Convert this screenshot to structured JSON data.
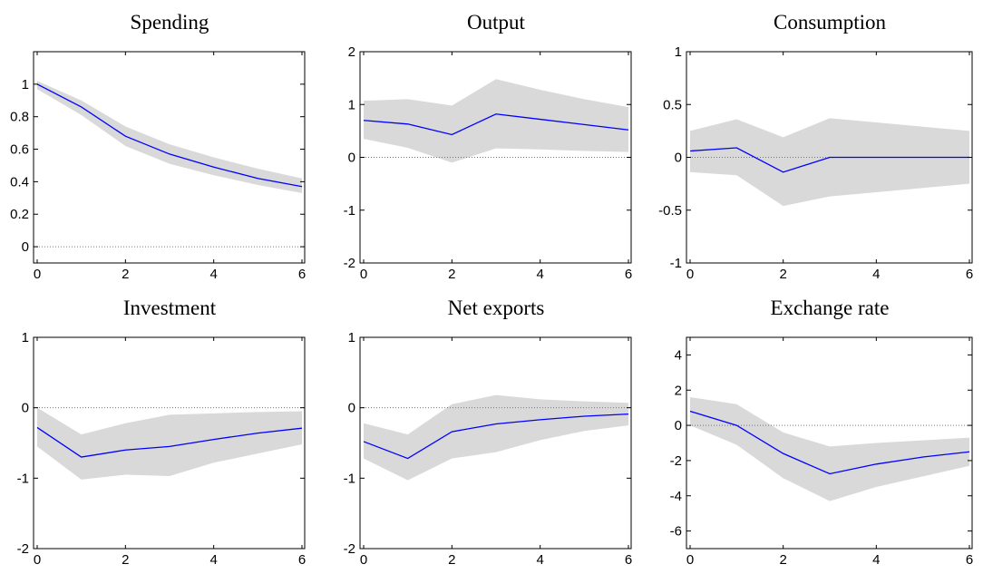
{
  "chart_data": [
    {
      "type": "line",
      "title": "Spending",
      "x": [
        0,
        1,
        2,
        3,
        4,
        5,
        6
      ],
      "xlim": [
        0,
        6
      ],
      "xticks": [
        0,
        2,
        4,
        6
      ],
      "ylim": [
        -0.1,
        1.2
      ],
      "yticks": [
        0,
        0.2,
        0.4,
        0.6,
        0.8,
        1
      ],
      "hline": 0,
      "band": {
        "color": "#d9d9d9",
        "upper": [
          1.02,
          0.9,
          0.74,
          0.63,
          0.55,
          0.48,
          0.42
        ],
        "lower": [
          0.97,
          0.81,
          0.62,
          0.51,
          0.44,
          0.38,
          0.33
        ]
      },
      "series": [
        {
          "color": "#0000ff",
          "values": [
            1,
            0.86,
            0.68,
            0.57,
            0.49,
            0.42,
            0.37
          ]
        }
      ]
    },
    {
      "type": "line",
      "title": "Output",
      "x": [
        0,
        1,
        2,
        3,
        4,
        5,
        6
      ],
      "xlim": [
        0,
        6
      ],
      "xticks": [
        0,
        2,
        4,
        6
      ],
      "ylim": [
        -2,
        2
      ],
      "yticks": [
        -2,
        -1,
        0,
        1,
        2
      ],
      "hline": 0,
      "band": {
        "color": "#d9d9d9",
        "upper": [
          1.07,
          1.1,
          0.98,
          1.48,
          1.28,
          1.1,
          0.95
        ],
        "lower": [
          0.35,
          0.18,
          -0.1,
          0.17,
          0.15,
          0.12,
          0.1
        ]
      },
      "series": [
        {
          "color": "#0000ff",
          "values": [
            0.7,
            0.63,
            0.43,
            0.82,
            0.72,
            0.62,
            0.52
          ]
        }
      ]
    },
    {
      "type": "line",
      "title": "Consumption",
      "x": [
        0,
        1,
        2,
        3,
        4,
        5,
        6
      ],
      "xlim": [
        0,
        6
      ],
      "xticks": [
        0,
        2,
        4,
        6
      ],
      "ylim": [
        -1,
        1
      ],
      "yticks": [
        -1,
        -0.5,
        0,
        0.5,
        1
      ],
      "hline": 0,
      "band": {
        "color": "#d9d9d9",
        "upper": [
          0.25,
          0.36,
          0.19,
          0.37,
          0.33,
          0.29,
          0.25
        ],
        "lower": [
          -0.14,
          -0.17,
          -0.46,
          -0.37,
          -0.33,
          -0.29,
          -0.25
        ]
      },
      "series": [
        {
          "color": "#0000ff",
          "values": [
            0.06,
            0.09,
            -0.14,
            0,
            0,
            0,
            0
          ]
        }
      ]
    },
    {
      "type": "line",
      "title": "Investment",
      "x": [
        0,
        1,
        2,
        3,
        4,
        5,
        6
      ],
      "xlim": [
        0,
        6
      ],
      "xticks": [
        0,
        2,
        4,
        6
      ],
      "ylim": [
        -2,
        1
      ],
      "yticks": [
        -2,
        -1,
        0,
        1
      ],
      "hline": 0,
      "band": {
        "color": "#d9d9d9",
        "upper": [
          0,
          -0.38,
          -0.22,
          -0.1,
          -0.08,
          -0.06,
          -0.05
        ],
        "lower": [
          -0.55,
          -1.02,
          -0.95,
          -0.97,
          -0.78,
          -0.65,
          -0.52
        ]
      },
      "series": [
        {
          "color": "#0000ff",
          "values": [
            -0.28,
            -0.7,
            -0.6,
            -0.55,
            -0.45,
            -0.36,
            -0.29
          ]
        }
      ]
    },
    {
      "type": "line",
      "title": "Net exports",
      "x": [
        0,
        1,
        2,
        3,
        4,
        5,
        6
      ],
      "xlim": [
        0,
        6
      ],
      "xticks": [
        0,
        2,
        4,
        6
      ],
      "ylim": [
        -2,
        1
      ],
      "yticks": [
        -2,
        -1,
        0,
        1
      ],
      "hline": 0,
      "band": {
        "color": "#d9d9d9",
        "upper": [
          -0.22,
          -0.38,
          0.05,
          0.18,
          0.12,
          0.09,
          0.07
        ],
        "lower": [
          -0.72,
          -1.03,
          -0.72,
          -0.63,
          -0.46,
          -0.33,
          -0.25
        ]
      },
      "series": [
        {
          "color": "#0000ff",
          "values": [
            -0.48,
            -0.72,
            -0.34,
            -0.23,
            -0.17,
            -0.12,
            -0.09
          ]
        }
      ]
    },
    {
      "type": "line",
      "title": "Exchange rate",
      "x": [
        0,
        1,
        2,
        3,
        4,
        5,
        6
      ],
      "xlim": [
        0,
        6
      ],
      "xticks": [
        0,
        2,
        4,
        6
      ],
      "ylim": [
        -7,
        5
      ],
      "yticks": [
        -6,
        -4,
        -2,
        0,
        2,
        4
      ],
      "hline": 0,
      "band": {
        "color": "#d9d9d9",
        "upper": [
          1.6,
          1.2,
          -0.4,
          -1.2,
          -1.0,
          -0.85,
          -0.7
        ],
        "lower": [
          0,
          -1.1,
          -3,
          -4.3,
          -3.5,
          -2.9,
          -2.3
        ]
      },
      "series": [
        {
          "color": "#0000ff",
          "values": [
            0.8,
            0,
            -1.6,
            -2.75,
            -2.2,
            -1.8,
            -1.5
          ]
        }
      ]
    }
  ]
}
